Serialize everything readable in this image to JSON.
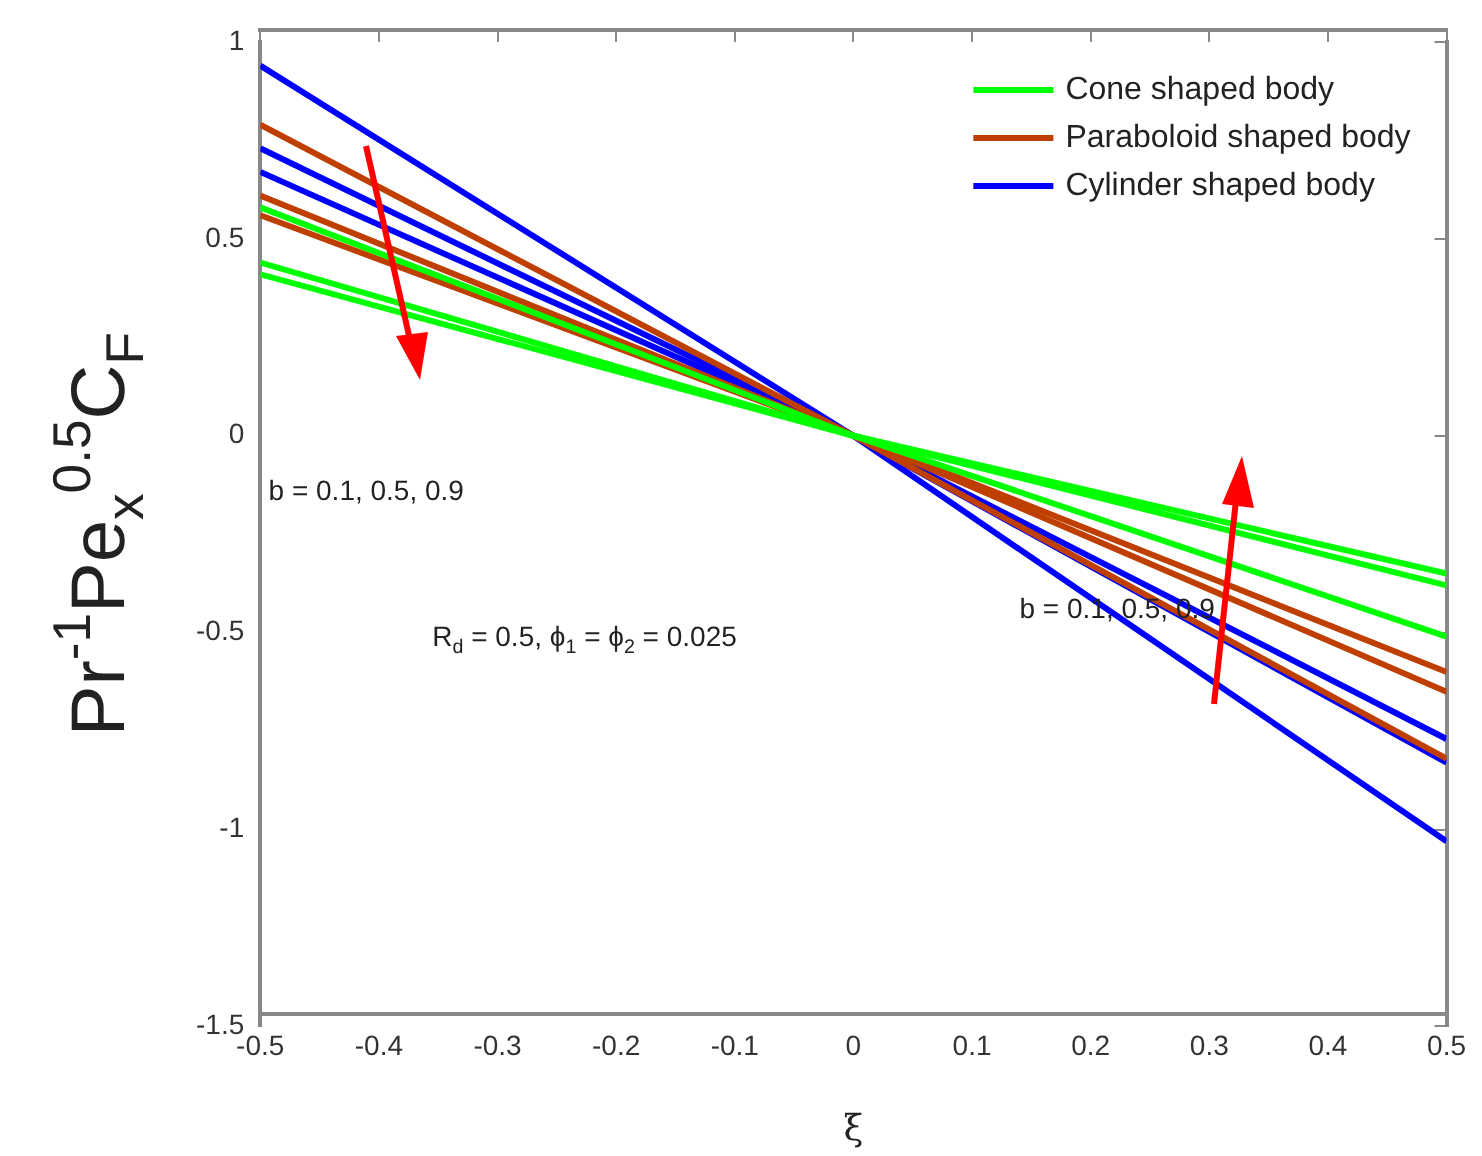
{
  "chart_data": {
    "type": "line",
    "xlabel": "ξ",
    "ylabel": "Pr$^{-1}$Pe$_{x}$$^{0.5}$C$_{F}$",
    "x": [
      -0.5,
      0,
      0.5
    ],
    "series": [
      {
        "name": "Cone shaped body",
        "color": "#00ff00",
        "values": [
          0.58,
          0,
          -0.51
        ]
      },
      {
        "color": "#00ff00",
        "values": [
          0.44,
          0,
          -0.38
        ]
      },
      {
        "color": "#00ff00",
        "values": [
          0.41,
          0,
          -0.35
        ]
      },
      {
        "name": "Paraboloid shaped body",
        "color": "#bf3f00",
        "values": [
          0.79,
          0,
          -0.82
        ]
      },
      {
        "color": "#bf3f00",
        "values": [
          0.61,
          0,
          -0.65
        ]
      },
      {
        "color": "#bf3f00",
        "values": [
          0.56,
          0,
          -0.6
        ]
      },
      {
        "name": "Cylinder shaped body",
        "color": "#0000ff",
        "values": [
          0.94,
          0,
          -1.03
        ]
      },
      {
        "color": "#0000ff",
        "values": [
          0.73,
          0,
          -0.83
        ]
      },
      {
        "color": "#0000ff",
        "values": [
          0.67,
          0,
          -0.77
        ]
      }
    ],
    "xlim": [
      -0.5,
      0.5
    ],
    "xticks": [
      -0.5,
      -0.4,
      -0.3,
      -0.2,
      -0.1,
      0,
      0.1,
      0.2,
      0.3,
      0.4,
      0.5
    ],
    "ylim": [
      -1.5,
      1
    ],
    "yticks": [
      -1.5,
      -1,
      -0.5,
      0,
      0.5,
      1
    ],
    "grid": false,
    "legend": "top right",
    "marker": "none",
    "line_style": "solid",
    "annotations": [
      "b = 0.1, 0.5, 0.9",
      "b = 0.1, 0.5, 0.9",
      "R$_{d}$ = 0.5, ϕ$_{1}$ = ϕ$_{2}$ = 0.025"
    ]
  }
}
